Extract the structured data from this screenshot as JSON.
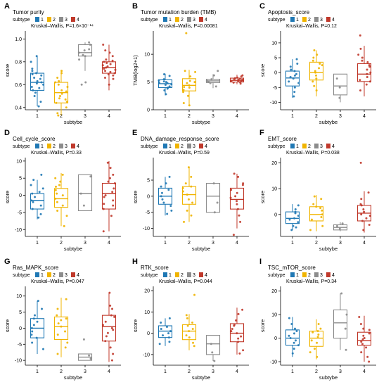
{
  "figure": {
    "colors": {
      "1": "#1f78b4",
      "2": "#f0b400",
      "3": "#8c8c8c",
      "4": "#c0392b"
    },
    "legend_title": "subtype",
    "legend_labels": [
      "1",
      "2",
      "3",
      "4"
    ]
  },
  "chart_data": [
    {
      "panel": "A",
      "type": "box",
      "title": "Tumor purity",
      "stat": "Kruskal–Wallis, P=1.6×10⁻¹⁴",
      "xlabel": "subtybe",
      "ylabel": "score",
      "categories": [
        "1",
        "2",
        "3",
        "4"
      ],
      "ylim": [
        0.38,
        1.07
      ],
      "yticks": [
        0.4,
        0.6,
        0.8,
        1.0
      ],
      "ytick_labels": [
        "0.4",
        "0.6",
        "0.8",
        "1.0"
      ],
      "boxes": [
        {
          "q1": 0.55,
          "median": 0.62,
          "q3": 0.7,
          "lo": 0.41,
          "hi": 0.85
        },
        {
          "q1": 0.44,
          "median": 0.53,
          "q3": 0.62,
          "lo": 0.33,
          "hi": 0.73
        },
        {
          "q1": 0.85,
          "median": 0.88,
          "q3": 0.95,
          "lo": 0.72,
          "hi": 0.97
        },
        {
          "q1": 0.7,
          "median": 0.75,
          "q3": 0.8,
          "lo": 0.55,
          "hi": 0.95
        }
      ],
      "points": [
        [
          0.65,
          0.58,
          0.7,
          0.62,
          0.55,
          0.68,
          0.72,
          0.6,
          0.5,
          0.45,
          0.8,
          0.66,
          0.57,
          0.63,
          0.74,
          0.53,
          0.41,
          0.85,
          0.61,
          0.69
        ],
        [
          0.52,
          0.48,
          0.6,
          0.55,
          0.44,
          0.62,
          0.4,
          0.66,
          0.5,
          0.58,
          0.35,
          0.7,
          0.45,
          0.54,
          0.33,
          0.72,
          0.47,
          0.63
        ],
        [
          0.9,
          0.86,
          0.95,
          0.82,
          0.97,
          0.88,
          0.62,
          0.6,
          0.85,
          0.91
        ],
        [
          0.75,
          0.7,
          0.78,
          0.8,
          0.72,
          0.68,
          0.85,
          0.77,
          0.74,
          0.82,
          0.65,
          0.9,
          0.76,
          0.71,
          0.6,
          0.79,
          0.73,
          0.88,
          0.66,
          0.81,
          0.69,
          0.95
        ]
      ]
    },
    {
      "panel": "B",
      "type": "box",
      "title": "Tumor mutation burden (TMB)",
      "stat": "Kruskal–Wallis, P=0.00081",
      "xlabel": "subtype",
      "ylabel": "TMB(log2+1)",
      "categories": [
        "1",
        "2",
        "3",
        "4"
      ],
      "ylim": [
        0,
        14.2
      ],
      "yticks": [
        0,
        5,
        10
      ],
      "ytick_labels": [
        "0",
        "5",
        "10"
      ],
      "boxes": [
        {
          "q1": 4.0,
          "median": 4.7,
          "q3": 5.4,
          "lo": 2.6,
          "hi": 6.5
        },
        {
          "q1": 3.4,
          "median": 4.4,
          "q3": 5.6,
          "lo": 0.7,
          "hi": 7.2
        },
        {
          "q1": 4.9,
          "median": 5.2,
          "q3": 5.5,
          "lo": 3.9,
          "hi": 6.4
        },
        {
          "q1": 5.0,
          "median": 5.3,
          "q3": 5.7,
          "lo": 4.6,
          "hi": 6.3
        }
      ],
      "points": [
        [
          4.5,
          5.0,
          4.2,
          5.3,
          3.8,
          4.8,
          6.1,
          2.8,
          5.5,
          4.0,
          4.6,
          5.1,
          3.5,
          6.4,
          4.9
        ],
        [
          4.0,
          5.2,
          3.6,
          4.4,
          6.8,
          2.5,
          5.0,
          1.2,
          4.8,
          3.2,
          6.0,
          7.0,
          4.1,
          13.8,
          0.8
        ],
        [
          5.2,
          5.5,
          4.8,
          6.2,
          7.0,
          4.2,
          5.0
        ],
        [
          5.2,
          5.4,
          5.0,
          5.6,
          5.8,
          5.1,
          5.3,
          4.9,
          5.5,
          6.0,
          5.7,
          4.7,
          5.2,
          6.2,
          5.4
        ]
      ]
    },
    {
      "panel": "C",
      "type": "box",
      "title": "Apoptosis_score",
      "stat": "Kruskal–Wallis, P=0.12",
      "xlabel": "subtybe",
      "ylabel": "score",
      "categories": [
        "1",
        "2",
        "3",
        "4"
      ],
      "ylim": [
        -12.5,
        14
      ],
      "yticks": [
        -10,
        -5,
        0,
        5,
        10
      ],
      "ytick_labels": [
        "-10",
        "-5",
        "0",
        "5",
        "10"
      ],
      "boxes": [
        {
          "q1": -4.5,
          "median": -1.8,
          "q3": 0.5,
          "lo": -8.5,
          "hi": 4.5
        },
        {
          "q1": -2.5,
          "median": 0.0,
          "q3": 3.5,
          "lo": -8.0,
          "hi": 7.5
        },
        {
          "q1": -7.5,
          "median": -4.5,
          "q3": -0.5,
          "lo": -10.0,
          "hi": -0.5
        },
        {
          "q1": -3.0,
          "median": -0.5,
          "q3": 3.0,
          "lo": -8.0,
          "hi": 9.0
        }
      ],
      "points": [
        [
          -1.5,
          0.5,
          -3.0,
          2.0,
          -5.0,
          4.5,
          -2.0,
          -6.5,
          1.0,
          -0.5,
          3.0,
          -8.0,
          -3.5,
          -1.0
        ],
        [
          0.0,
          2.5,
          -2.0,
          4.0,
          6.0,
          -4.5,
          1.5,
          -6.0,
          7.5,
          3.0,
          -1.0,
          5.0,
          -3.0,
          0.5
        ],
        [
          -2.0,
          -5.0,
          -8.5
        ],
        [
          0.0,
          2.0,
          -2.5,
          4.0,
          6.0,
          -4.0,
          1.0,
          -1.5,
          8.0,
          -6.0,
          3.5,
          12.5,
          -0.5,
          5.0,
          -3.0,
          2.5
        ]
      ]
    },
    {
      "panel": "D",
      "type": "box",
      "title": "Cell_cycle_score",
      "stat": "Kruskal–Wallis, P=0.33",
      "xlabel": "subtybe",
      "ylabel": "score",
      "categories": [
        "1",
        "2",
        "3",
        "4"
      ],
      "ylim": [
        -12,
        11
      ],
      "yticks": [
        -10,
        -5,
        0,
        5,
        10
      ],
      "ytick_labels": [
        "-10",
        "-5",
        "0",
        "5",
        "10"
      ],
      "boxes": [
        {
          "q1": -4.0,
          "median": -1.5,
          "q3": 0.5,
          "lo": -7.0,
          "hi": 4.5
        },
        {
          "q1": -3.5,
          "median": -1.0,
          "q3": 2.0,
          "lo": -9.0,
          "hi": 6.5
        },
        {
          "q1": -4.5,
          "median": 0.5,
          "q3": 6.0,
          "lo": -4.5,
          "hi": 6.0
        },
        {
          "q1": -4.0,
          "median": 0.5,
          "q3": 3.5,
          "lo": -10.5,
          "hi": 10.0
        }
      ],
      "points": [
        [
          -1.5,
          0.5,
          -3.0,
          2.0,
          -5.5,
          4.5,
          -2.0,
          -6.5,
          1.0,
          -0.5,
          3.0,
          -4.0,
          6.0
        ],
        [
          0.0,
          2.5,
          -2.0,
          4.0,
          6.0,
          -4.5,
          1.5,
          -6.0,
          -9.0,
          3.0,
          -1.0,
          5.0,
          -3.0,
          0.5
        ],
        [
          5.5,
          -3.0,
          0.5
        ],
        [
          0.0,
          2.0,
          -2.5,
          4.0,
          6.0,
          -4.0,
          1.0,
          -1.5,
          8.0,
          -6.0,
          3.5,
          -10.5,
          -0.5,
          5.0,
          -3.0,
          9.5
        ]
      ]
    },
    {
      "panel": "E",
      "type": "box",
      "title": "DNA_damage_response_score",
      "stat": "Kruskal–Wallis, P=0.59",
      "xlabel": "subtybe",
      "ylabel": "score",
      "categories": [
        "1",
        "2",
        "3",
        "4"
      ],
      "ylim": [
        -12.5,
        12
      ],
      "yticks": [
        -10,
        -5,
        0,
        5
      ],
      "ytick_labels": [
        "-10",
        "-5",
        "0",
        "5"
      ],
      "boxes": [
        {
          "q1": -2.5,
          "median": 0.0,
          "q3": 2.5,
          "lo": -6.0,
          "hi": 6.0
        },
        {
          "q1": -2.5,
          "median": 0.5,
          "q3": 3.0,
          "lo": -8.0,
          "hi": 9.0
        },
        {
          "q1": -5.0,
          "median": 0.0,
          "q3": 4.0,
          "lo": -5.0,
          "hi": 4.0
        },
        {
          "q1": -4.0,
          "median": -1.0,
          "q3": 2.5,
          "lo": -10.0,
          "hi": 7.0
        }
      ],
      "points": [
        [
          0.0,
          2.0,
          -2.0,
          4.0,
          -4.5,
          1.0,
          -1.0,
          6.0,
          -3.0,
          3.0,
          -5.5
        ],
        [
          0.5,
          2.5,
          -2.0,
          4.0,
          6.0,
          -4.5,
          1.5,
          -6.0,
          9.0,
          3.0,
          -1.0,
          -8.0
        ],
        [
          4.0,
          -5.0,
          -2.0
        ],
        [
          0.0,
          2.0,
          -2.5,
          4.0,
          6.0,
          -4.0,
          1.0,
          -1.5,
          -8.0,
          -6.0,
          3.5,
          -12.0,
          -0.5,
          7.0
        ]
      ]
    },
    {
      "panel": "F",
      "type": "box",
      "title": "EMT_score",
      "stat": "Kruskal–Wallis, P=0.038",
      "xlabel": "subtybe",
      "ylabel": "score",
      "categories": [
        "1",
        "2",
        "3",
        "4"
      ],
      "ylim": [
        -8.5,
        22
      ],
      "yticks": [
        0,
        10,
        20
      ],
      "ytick_labels": [
        "0",
        "10",
        "20"
      ],
      "boxes": [
        {
          "q1": -3.5,
          "median": -1.5,
          "q3": 1.0,
          "lo": -6.0,
          "hi": 4.0
        },
        {
          "q1": -2.5,
          "median": 0.0,
          "q3": 3.0,
          "lo": -6.5,
          "hi": 7.5
        },
        {
          "q1": -6.0,
          "median": -5.0,
          "q3": -4.0,
          "lo": -6.5,
          "hi": -3.0
        },
        {
          "q1": -2.5,
          "median": 0.5,
          "q3": 3.5,
          "lo": -7.0,
          "hi": 9.0
        }
      ],
      "points": [
        [
          -1.5,
          0.5,
          -3.0,
          2.0,
          -5.0,
          3.5,
          -2.0,
          -4.5,
          1.0,
          -0.5,
          -6.0
        ],
        [
          0.0,
          2.5,
          -2.0,
          4.0,
          6.0,
          -4.5,
          1.5,
          -6.0,
          7.0,
          3.0,
          -1.0
        ],
        [
          -4.5,
          -5.5,
          -3.5
        ],
        [
          0.0,
          2.0,
          -2.5,
          4.0,
          6.0,
          -4.0,
          1.0,
          -1.5,
          8.5,
          -6.0,
          3.5,
          20.0,
          -0.5
        ]
      ]
    },
    {
      "panel": "G",
      "type": "box",
      "title": "Ras_MAPK_score",
      "stat": "Kruskal–Wallis, P=0.047",
      "xlabel": "subtybe",
      "ylabel": "score",
      "categories": [
        "1",
        "2",
        "3",
        "4"
      ],
      "ylim": [
        -11.5,
        13
      ],
      "yticks": [
        -10,
        -5,
        0,
        5,
        10
      ],
      "ytick_labels": [
        "-10",
        "-5",
        "0",
        "5",
        "10"
      ],
      "boxes": [
        {
          "q1": -3.0,
          "median": 0.0,
          "q3": 3.0,
          "lo": -8.0,
          "hi": 8.5
        },
        {
          "q1": -3.5,
          "median": 0.5,
          "q3": 3.5,
          "lo": -9.0,
          "hi": 9.5
        },
        {
          "q1": -10.0,
          "median": -9.0,
          "q3": -8.0,
          "lo": -10.0,
          "hi": -8.0
        },
        {
          "q1": -4.0,
          "median": 0.5,
          "q3": 4.0,
          "lo": -10.5,
          "hi": 11.0
        }
      ],
      "points": [
        [
          0.0,
          2.0,
          -2.0,
          4.0,
          -4.5,
          1.0,
          -1.0,
          6.0,
          -3.0,
          3.0,
          -6.5,
          8.5
        ],
        [
          0.5,
          2.5,
          -2.0,
          4.0,
          6.0,
          -4.5,
          1.5,
          -6.0,
          9.0,
          3.0,
          -1.0,
          -8.0
        ],
        [
          -8.5,
          -9.5,
          -3.5
        ],
        [
          0.0,
          2.0,
          -2.5,
          4.0,
          6.0,
          -4.0,
          1.0,
          -1.5,
          -8.0,
          -6.0,
          3.5,
          11.0,
          -0.5,
          7.0,
          -10.0
        ]
      ]
    },
    {
      "panel": "H",
      "type": "box",
      "title": "RTK_score",
      "stat": "Kruskal–Wallis, P=0.044",
      "xlabel": "subtybe",
      "ylabel": "score",
      "categories": [
        "1",
        "2",
        "3",
        "4"
      ],
      "ylim": [
        -15,
        22
      ],
      "yticks": [
        -10,
        0,
        10,
        20
      ],
      "ytick_labels": [
        "-10",
        "0",
        "10",
        "20"
      ],
      "boxes": [
        {
          "q1": -2.0,
          "median": 1.0,
          "q3": 3.5,
          "lo": -6.0,
          "hi": 7.0
        },
        {
          "q1": -3.0,
          "median": 1.0,
          "q3": 4.0,
          "lo": -8.0,
          "hi": 9.0
        },
        {
          "q1": -10.0,
          "median": -5.0,
          "q3": -1.0,
          "lo": -13.0,
          "hi": -1.0
        },
        {
          "q1": -4.0,
          "median": 0.0,
          "q3": 4.5,
          "lo": -10.0,
          "hi": 12.0
        }
      ],
      "points": [
        [
          1.0,
          3.0,
          -1.0,
          5.0,
          -4.0,
          2.0,
          -2.0,
          7.0,
          -5.0,
          0.0
        ],
        [
          1.0,
          3.5,
          -2.0,
          5.0,
          7.0,
          -4.5,
          2.0,
          -6.0,
          8.5,
          18.0,
          -1.0
        ],
        [
          -5.0,
          -9.0,
          -13.0
        ],
        [
          0.0,
          2.0,
          -2.5,
          4.0,
          6.0,
          -4.0,
          1.0,
          -1.5,
          -8.0,
          11.0,
          3.5,
          -9.5,
          9.0
        ]
      ]
    },
    {
      "panel": "I",
      "type": "box",
      "title": "TSC_mTOR_score",
      "stat": "Kruskal–Wallis, P=0.34",
      "xlabel": "subtybe",
      "ylabel": "score",
      "categories": [
        "1",
        "2",
        "3",
        "4"
      ],
      "ylim": [
        -11.5,
        22
      ],
      "yticks": [
        -10,
        0,
        10,
        20
      ],
      "ytick_labels": [
        "-10",
        "0",
        "10",
        "20"
      ],
      "boxes": [
        {
          "q1": -3.0,
          "median": 0.0,
          "q3": 3.5,
          "lo": -8.0,
          "hi": 9.0
        },
        {
          "q1": -3.5,
          "median": 0.0,
          "q3": 3.0,
          "lo": -9.0,
          "hi": 8.0
        },
        {
          "q1": 0.0,
          "median": 6.5,
          "q3": 12.0,
          "lo": -5.0,
          "hi": 19.0
        },
        {
          "q1": -3.0,
          "median": -1.0,
          "q3": 2.5,
          "lo": -10.0,
          "hi": 9.5
        }
      ],
      "points": [
        [
          0.0,
          2.0,
          -2.0,
          4.0,
          -4.5,
          1.0,
          -1.0,
          6.0,
          -3.0,
          3.0,
          -6.5,
          8.5
        ],
        [
          0.5,
          2.5,
          -2.0,
          4.0,
          6.0,
          -4.5,
          1.5,
          -6.0,
          -8.0,
          3.0,
          -1.0
        ],
        [
          19.0,
          4.0,
          10.0,
          -5.0
        ],
        [
          0.0,
          2.0,
          -2.5,
          4.0,
          6.0,
          -4.0,
          1.0,
          -1.5,
          -8.0,
          -6.0,
          3.5,
          -10.0,
          -0.5,
          9.0
        ]
      ]
    }
  ]
}
